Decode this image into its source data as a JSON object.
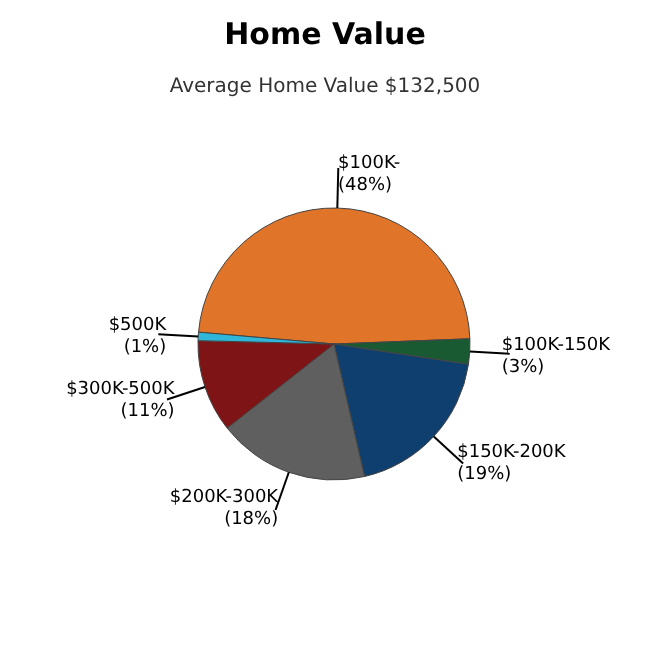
{
  "chart_data": {
    "type": "pie",
    "title": "Home Value",
    "subtitle": "Average Home Value  $132,500",
    "categories": [
      "$100K-",
      "$100K-150K",
      "$150K-200K",
      "$200K-300K",
      "$300K-500K",
      "$500K"
    ],
    "values": [
      48,
      3,
      19,
      18,
      11,
      1
    ],
    "value_labels": [
      "(48%)",
      "(3%)",
      "(19%)",
      "(18%)",
      "(11%)",
      "(1%)"
    ],
    "colors": [
      "#e07428",
      "#1a5a32",
      "#0f3f6e",
      "#5f5f5f",
      "#7e1416",
      "#2fb6d8"
    ]
  }
}
